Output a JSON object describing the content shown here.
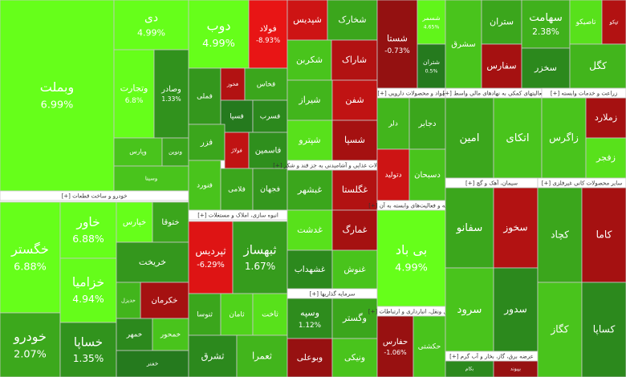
{
  "chart_data": {
    "type": "treemap",
    "sectors": [
      {
        "tiles": [
          {
            "name": "وبملت",
            "change": 6.99,
            "change_label": "6.99%"
          },
          {
            "name": "دی",
            "change": 4.99,
            "change_label": "4.99%"
          },
          {
            "name": "وتجارت",
            "change": 6.8,
            "change_label": "6.8%"
          },
          {
            "name": "وصادر",
            "change": 1.33,
            "change_label": "1.33%"
          },
          {
            "name": "وپارس",
            "change": 3
          },
          {
            "name": "ونوین",
            "change": 2
          },
          {
            "name": "وسینا",
            "change": 3
          }
        ]
      },
      {
        "name": "خودرو و ساخت قطعات [+]",
        "tiles": [
          {
            "name": "خگستر",
            "change": 6.88,
            "change_label": "6.88%"
          },
          {
            "name": "خودرو",
            "change": 2.07,
            "change_label": "2.07%"
          },
          {
            "name": "خاور",
            "change": 6.88,
            "change_label": "6.88%"
          },
          {
            "name": "خزامیا",
            "change": 4.94,
            "change_label": "4.94%"
          },
          {
            "name": "خساپا",
            "change": 1.35,
            "change_label": "1.35%"
          },
          {
            "name": "خپارس",
            "change": 5
          },
          {
            "name": "ختوقا",
            "change": 2
          },
          {
            "name": "خریخت",
            "change": 1.5
          },
          {
            "name": "خکرمان",
            "change": -2
          },
          {
            "name": "خدیزل",
            "change": 2.5
          },
          {
            "name": "خمهر",
            "change": 1
          },
          {
            "name": "خمحور",
            "change": 3
          },
          {
            "name": "خفنر",
            "change": 0.5
          }
        ]
      },
      {
        "tiles": [
          {
            "name": "دوب",
            "change": 4.99,
            "change_label": "4.99%"
          },
          {
            "name": "فولاد",
            "change": -8.93,
            "change_label": "-8.93%"
          },
          {
            "name": "فملی",
            "change": 1.5
          },
          {
            "name": "فخوز",
            "change": -3
          },
          {
            "name": "فخاس",
            "change": 2
          },
          {
            "name": "فسپا",
            "change": 0.5
          },
          {
            "name": "فسرب",
            "change": 1
          },
          {
            "name": "فزر",
            "change": 2
          },
          {
            "name": "فولاژ",
            "change": -4
          },
          {
            "name": "فاسمین",
            "change": 1.2
          },
          {
            "name": "فنورد",
            "change": 3
          },
          {
            "name": "فلامی",
            "change": 2
          },
          {
            "name": "فجهان",
            "change": 1.5
          }
        ]
      },
      {
        "name": "انبوه سازی، املاک و مستغلات [+]",
        "tiles": [
          {
            "name": "ثپردیس",
            "change": -6.29,
            "change_label": "-6.29%"
          },
          {
            "name": "ثبهساز",
            "change": 1.67,
            "change_label": "1.67%"
          },
          {
            "name": "ثنوسا",
            "change": 2
          },
          {
            "name": "ثامان",
            "change": 3.5
          },
          {
            "name": "ثاخت",
            "change": 4
          },
          {
            "name": "ثشرق",
            "change": 1
          },
          {
            "name": "ثعمرا",
            "change": 2.5
          }
        ]
      },
      {
        "tiles": [
          {
            "name": "شپدیس",
            "change": -5
          },
          {
            "name": "شخارک",
            "change": 2
          },
          {
            "name": "شکربن",
            "change": 3
          },
          {
            "name": "شاراک",
            "change": -3
          },
          {
            "name": "شیراز",
            "change": 2.5
          },
          {
            "name": "شفن",
            "change": -4
          },
          {
            "name": "شپترو",
            "change": 4
          },
          {
            "name": "شسپا",
            "change": -2
          },
          {
            "name": "شستا",
            "change": -0.73,
            "change_label": "-0.73%"
          },
          {
            "name": "شسمر",
            "change": 4.65,
            "change_label": "4.65%"
          },
          {
            "name": "شتران",
            "change": 0.5,
            "change_label": "0.5%"
          }
        ]
      },
      {
        "name": "محصولات غذایی و آشامیدنی به جز قند و شکر [+]",
        "tiles": [
          {
            "name": "غبشهر",
            "change": 2
          },
          {
            "name": "غگلستا",
            "change": -3
          },
          {
            "name": "غدشت",
            "change": 4
          },
          {
            "name": "غمارگ",
            "change": -2
          },
          {
            "name": "غشهداب",
            "change": 1
          },
          {
            "name": "غنوش",
            "change": 3
          }
        ]
      },
      {
        "name": "سرمایه گذاریها [+]",
        "tiles": [
          {
            "name": "وسپه",
            "change": 1.12,
            "change_label": "1.12%"
          },
          {
            "name": "وگستر",
            "change": 2
          },
          {
            "name": "وبوعلی",
            "change": -1
          },
          {
            "name": "ونیکی",
            "change": 3
          }
        ]
      },
      {
        "name": "مواد و محصولات دارویی [+]",
        "tiles": [
          {
            "name": "دلر",
            "change": 2.5
          },
          {
            "name": "دجابر",
            "change": 2
          },
          {
            "name": "دتولید",
            "change": -5
          },
          {
            "name": "دسبحان",
            "change": 3
          }
        ]
      },
      {
        "name": "رایانه و فعالیت‌های وابسته به آن [+]",
        "tiles": [
          {
            "name": "بی باد",
            "change": 4.99,
            "change_label": "4.99%"
          }
        ]
      },
      {
        "name": "حمل ونقل، انبارداری و ارتباطات [+]",
        "tiles": [
          {
            "name": "حفارس",
            "change": -1.06,
            "change_label": "-1.06%"
          },
          {
            "name": "حکشتی",
            "change": 3
          }
        ]
      },
      {
        "name": "فعالیتهای کمکی به نهادهای مالی واسط [+]",
        "tiles": [
          {
            "name": "امین",
            "change": 2
          },
          {
            "name": "اتکای",
            "change": 3
          }
        ]
      },
      {
        "tiles": [
          {
            "name": "سشرق",
            "change": 3
          },
          {
            "name": "ستران",
            "change": 2
          },
          {
            "name": "سفارس",
            "change": -2
          },
          {
            "name": "سهامت",
            "change": 2.38,
            "change_label": "2.38%"
          },
          {
            "name": "سخزر",
            "change": 1
          },
          {
            "name": "تاصیکو",
            "change": 4
          },
          {
            "name": "تپکو",
            "change": -3
          },
          {
            "name": "کگل",
            "change": 2.5
          }
        ]
      },
      {
        "name": "زراعت و خدمات وابسته [+]",
        "tiles": [
          {
            "name": "زاگرس",
            "change": 3
          },
          {
            "name": "زملارد",
            "change": -2
          },
          {
            "name": "زفجر",
            "change": 4
          }
        ]
      },
      {
        "name": "سیمان، آهک و گچ [+]",
        "tiles": [
          {
            "name": "سفانو",
            "change": 2
          },
          {
            "name": "سخوز",
            "change": -3
          },
          {
            "name": "سرود",
            "change": 3
          },
          {
            "name": "سدور",
            "change": 1
          }
        ]
      },
      {
        "name": "عرضه برق، گاز، بخار و آب گرم [+]",
        "tiles": [
          {
            "name": "بکام",
            "change": 1
          },
          {
            "name": "بپیوند",
            "change": -1
          }
        ]
      },
      {
        "name": "سایر محصولات کانی غیرفلزی [+]",
        "tiles": [
          {
            "name": "کچاد",
            "change": 2
          },
          {
            "name": "کاما",
            "change": -2
          },
          {
            "name": "کگاز",
            "change": 3
          },
          {
            "name": "کساپا",
            "change": 1
          }
        ]
      }
    ]
  }
}
